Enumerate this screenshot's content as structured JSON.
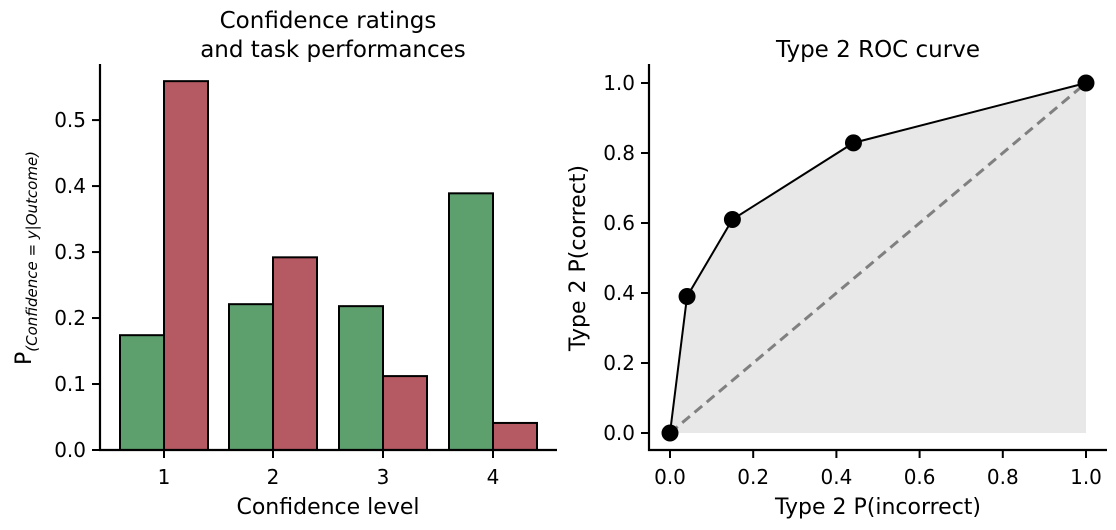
{
  "chart_data": [
    {
      "type": "bar",
      "title_lines": [
        "Confidence ratings",
        "and task performances"
      ],
      "xlabel": "Confidence level",
      "ylabel": {
        "base": "P",
        "sub": "(Confidence = y|Outcome)"
      },
      "categories": [
        "1",
        "2",
        "3",
        "4"
      ],
      "ylim": [
        0,
        0.585
      ],
      "yticks": [
        "0.0",
        "0.1",
        "0.2",
        "0.3",
        "0.4",
        "0.5"
      ],
      "series": [
        {
          "color": "#5e9f6e",
          "values": [
            0.174,
            0.221,
            0.218,
            0.389
          ]
        },
        {
          "color": "#b55a62",
          "values": [
            0.559,
            0.292,
            0.112,
            0.041
          ]
        }
      ],
      "grid": false
    },
    {
      "type": "line",
      "title": "Type 2 ROC curve",
      "xlabel": "Type 2 P(incorrect)",
      "ylabel": "Type 2 P(correct)",
      "xlim": [
        -0.05,
        1.05
      ],
      "ylim": [
        -0.05,
        1.05
      ],
      "xticks": [
        "0.0",
        "0.2",
        "0.4",
        "0.6",
        "0.8",
        "1.0"
      ],
      "yticks": [
        "0.0",
        "0.2",
        "0.4",
        "0.6",
        "0.8",
        "1.0"
      ],
      "points": {
        "x": [
          0.0,
          0.041,
          0.15,
          0.441,
          1.0
        ],
        "y": [
          0.0,
          0.39,
          0.61,
          0.829,
          1.0
        ]
      },
      "chance_line": {
        "x": [
          0,
          1
        ],
        "y": [
          0,
          1
        ],
        "style": "dashed",
        "color": "#808080"
      },
      "fill_color": "#e8e8e8",
      "grid": false
    }
  ]
}
